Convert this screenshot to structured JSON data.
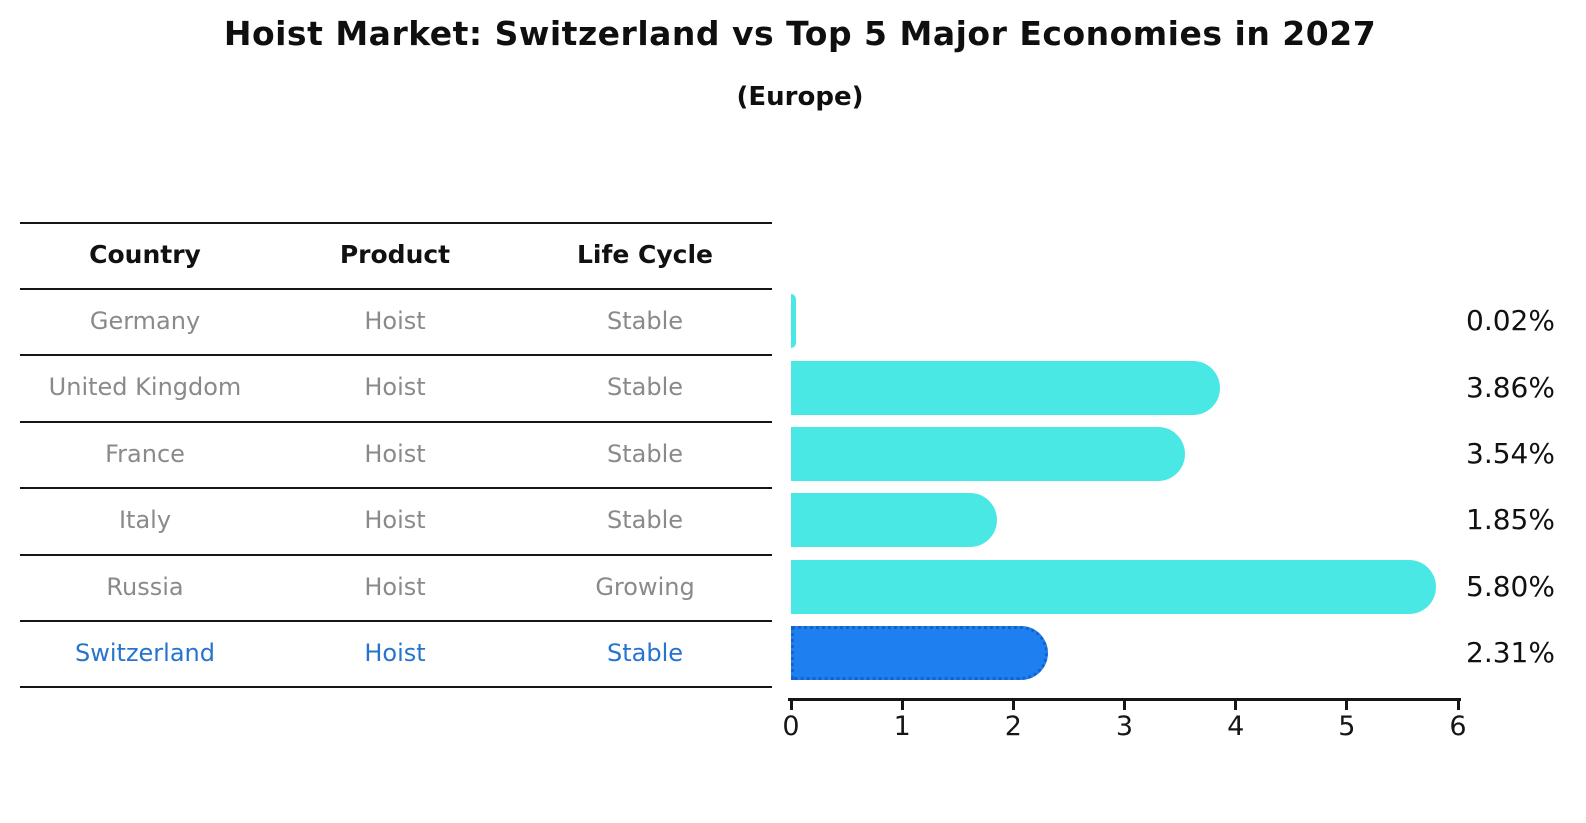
{
  "title": "Hoist Market: Switzerland vs Top 5 Major Economies in 2027",
  "subtitle": "(Europe)",
  "table": {
    "headers": [
      "Country",
      "Product",
      "Life Cycle"
    ],
    "rows": [
      {
        "country": "Germany",
        "product": "Hoist",
        "life_cycle": "Stable",
        "highlight": false
      },
      {
        "country": "United Kingdom",
        "product": "Hoist",
        "life_cycle": "Stable",
        "highlight": false
      },
      {
        "country": "France",
        "product": "Hoist",
        "life_cycle": "Stable",
        "highlight": false
      },
      {
        "country": "Italy",
        "product": "Hoist",
        "life_cycle": "Stable",
        "highlight": false
      },
      {
        "country": "Russia",
        "product": "Hoist",
        "life_cycle": "Growing",
        "highlight": false
      },
      {
        "country": "Switzerland",
        "product": "Hoist",
        "life_cycle": "Stable",
        "highlight": true
      }
    ],
    "row_text_color": "#8a8a8a",
    "highlight_text_color": "#2674CE"
  },
  "chart_data": {
    "type": "bar",
    "orientation": "horizontal",
    "title": "Hoist Market: Switzerland vs Top 5 Major Economies in 2027",
    "subtitle": "(Europe)",
    "categories": [
      "Germany",
      "United Kingdom",
      "France",
      "Italy",
      "Russia",
      "Switzerland"
    ],
    "values": [
      0.02,
      3.86,
      3.54,
      1.85,
      5.8,
      2.31
    ],
    "value_labels": [
      "0.02%",
      "3.86%",
      "3.54%",
      "1.85%",
      "5.80%",
      "2.31%"
    ],
    "xlim": [
      0,
      6
    ],
    "xticks": [
      "0",
      "1",
      "2",
      "3",
      "4",
      "5",
      "6"
    ],
    "grid": false,
    "bar_color": "#4AE8E4",
    "highlight_index": 5,
    "highlight_color": "#1E80F0",
    "highlight_border_color": "#1463C8"
  }
}
